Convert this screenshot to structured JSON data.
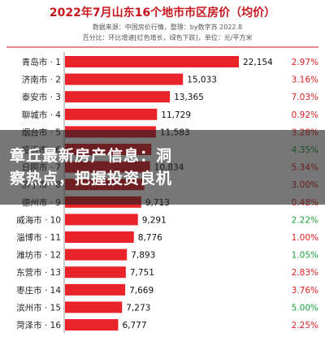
{
  "chart_data": {
    "type": "bar",
    "orientation": "horizontal",
    "title": "2022年7月山东16个地市市区房价（均价）",
    "subtitle": "数据来源：中国房价行情，整理：by数字苏 2022.8",
    "legend_note": "百分比：环比增速[红色增长，绿色下跌]，单位：元/平方米",
    "categories": [
      "青岛市 · 1",
      "济南市 · 2",
      "泰安市 · 3",
      "聊城市 · 4",
      "烟台市 · 5",
      "临沂市 · 6",
      "日照市 · 7",
      "济宁市 · 8",
      "德州市 · 9",
      "威海市 · 10",
      "淄博市 · 11",
      "潍坊市 · 12",
      "东营市 · 13",
      "枣庄市 · 14",
      "滨州市 · 15",
      "菏泽市 · 16"
    ],
    "values": [
      22154,
      15033,
      13365,
      11729,
      11583,
      11000,
      10834,
      10100,
      9713,
      9291,
      8776,
      7893,
      7751,
      7669,
      7273,
      6777
    ],
    "value_labels": [
      "22,154",
      "15,033",
      "13,365",
      "11,729",
      "11,583",
      "",
      "10,834",
      "",
      "9,713",
      "9,291",
      "8,776",
      "7,893",
      "7,751",
      "7,669",
      "7,273",
      "6,777"
    ],
    "growth": [
      "2.97%",
      "3.16%",
      "7.03%",
      "0.92%",
      "3.28%",
      "4.35%",
      "5.34%",
      "3.00%",
      "0.48%",
      "2.22%",
      "1.00%",
      "1.05%",
      "2.83%",
      "3.76%",
      "5.00%",
      "2.25%"
    ],
    "growth_direction": [
      "up",
      "up",
      "up",
      "up",
      "up",
      "down",
      "up",
      "up",
      "up",
      "down",
      "up",
      "down",
      "up",
      "up",
      "down",
      "up"
    ],
    "xlim": [
      0,
      22154
    ],
    "colors": {
      "bar": "#e8242a",
      "up": "#e02020",
      "down": "#1aa33a",
      "title": "#c8161d"
    }
  },
  "overlay": {
    "line1": "章丘最新房产信息：洞",
    "line2": "察热点，把握投资良机"
  }
}
